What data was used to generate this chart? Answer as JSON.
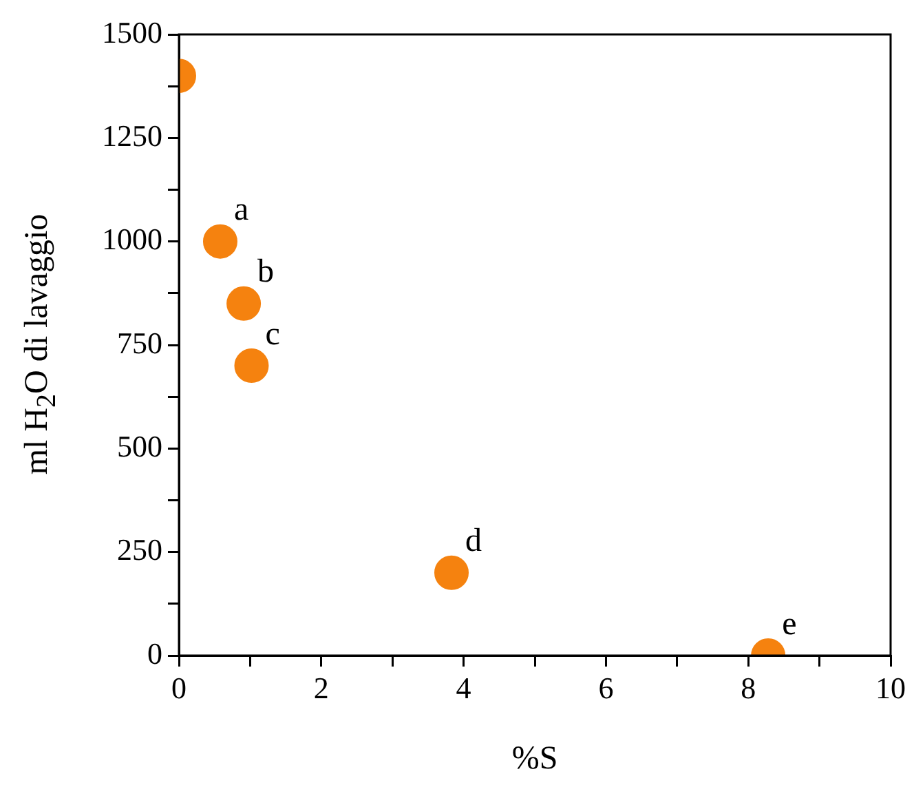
{
  "chart_data": {
    "type": "scatter",
    "xlabel": "%S",
    "ylabel": "ml H$_{2}$O di lavaggio",
    "x": [
      0,
      0.58,
      0.91,
      1.02,
      3.83,
      8.28
    ],
    "values": [
      1400,
      1000,
      850,
      700,
      200,
      0
    ],
    "color": "#f5820f",
    "marker": "circle",
    "grid": false,
    "legend": false,
    "xlim": [
      0,
      10
    ],
    "ylim": [
      0,
      1500
    ],
    "xticks": [
      0,
      {
        "value": 1,
        "label": null
      },
      2,
      {
        "value": 3,
        "label": null
      },
      4,
      {
        "value": 5,
        "label": null
      },
      6,
      {
        "value": 7,
        "label": null
      },
      8,
      {
        "value": 9,
        "label": null
      },
      10
    ],
    "yticks": [
      0,
      {
        "value": 125,
        "label": null
      },
      250,
      {
        "value": 375,
        "label": null
      },
      500,
      {
        "value": 625,
        "label": null
      },
      750,
      {
        "value": 875,
        "label": null
      },
      1000,
      {
        "value": 1125,
        "label": null
      },
      1250,
      {
        "value": 1375,
        "label": null
      },
      1500
    ],
    "annotations": [
      {
        "text": "a",
        "x": 0.58,
        "y": 1000
      },
      {
        "text": "b",
        "x": 0.91,
        "y": 850
      },
      {
        "text": "c",
        "x": 1.02,
        "y": 700
      },
      {
        "text": "d",
        "x": 3.83,
        "y": 200
      },
      {
        "text": "e",
        "x": 8.28,
        "y": 0
      }
    ]
  }
}
